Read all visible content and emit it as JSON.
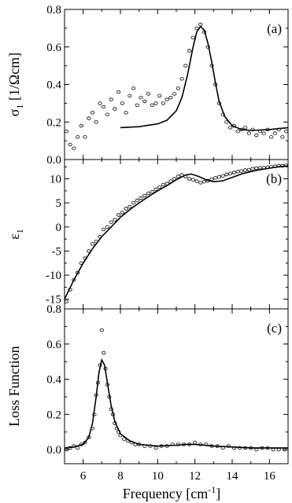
{
  "chart_data": {
    "type": "scatter",
    "xlabel": "Frequency [cm",
    "xlabel_sup": "-1",
    "xlabel_end": "]",
    "xlim": [
      5,
      17
    ],
    "xticks": [
      6,
      8,
      10,
      12,
      14,
      16
    ],
    "xtick_labels": [
      "6",
      "8",
      "10",
      "12",
      "14",
      "16"
    ],
    "panels": [
      {
        "label": "(a)",
        "ylabel_main": "σ",
        "ylabel_sub": "1",
        "ylabel_rest": " [1/Ωcm]",
        "ylim": [
          0,
          0.8
        ],
        "yticks": [
          0.0,
          0.2,
          0.4,
          0.6,
          0.8
        ],
        "ytick_labels": [
          "0.0",
          "0.2",
          "0.4",
          "0.6",
          "0.8"
        ],
        "series": [
          {
            "style": "scatter-open-circle",
            "x": [
              5.1,
              5.3,
              5.5,
              5.7,
              5.9,
              6.1,
              6.3,
              6.5,
              6.7,
              6.9,
              7.1,
              7.3,
              7.5,
              7.7,
              7.9,
              8.1,
              8.3,
              8.5,
              8.7,
              8.9,
              9.1,
              9.3,
              9.5,
              9.7,
              9.9,
              10.1,
              10.3,
              10.5,
              10.7,
              10.9,
              11.1,
              11.3,
              11.5,
              11.7,
              11.9,
              12.1,
              12.3,
              12.5,
              12.7,
              12.9,
              13.1,
              13.3,
              13.5,
              13.7,
              13.9,
              14.1,
              14.3,
              14.5,
              14.7,
              14.9,
              15.1,
              15.3,
              15.5,
              15.7,
              15.9,
              16.1,
              16.3,
              16.5,
              16.7,
              16.9
            ],
            "y": [
              0.15,
              0.08,
              0.06,
              0.12,
              0.18,
              0.12,
              0.22,
              0.25,
              0.2,
              0.3,
              0.28,
              0.24,
              0.32,
              0.27,
              0.36,
              0.3,
              0.25,
              0.34,
              0.38,
              0.29,
              0.33,
              0.31,
              0.35,
              0.29,
              0.3,
              0.34,
              0.3,
              0.32,
              0.33,
              0.35,
              0.38,
              0.43,
              0.5,
              0.58,
              0.65,
              0.7,
              0.72,
              0.68,
              0.6,
              0.5,
              0.4,
              0.3,
              0.24,
              0.2,
              0.17,
              0.18,
              0.15,
              0.16,
              0.17,
              0.14,
              0.16,
              0.13,
              0.15,
              0.14,
              0.16,
              0.12,
              0.14,
              0.16,
              0.12,
              0.15
            ]
          },
          {
            "style": "line",
            "x": [
              8.0,
              9.0,
              10.0,
              10.5,
              11.0,
              11.3,
              11.6,
              11.9,
              12.1,
              12.3,
              12.5,
              12.7,
              12.9,
              13.1,
              13.3,
              13.6,
              14.0,
              14.5,
              15.0,
              16.0,
              17.0
            ],
            "y": [
              0.17,
              0.175,
              0.19,
              0.21,
              0.26,
              0.33,
              0.45,
              0.6,
              0.68,
              0.71,
              0.69,
              0.62,
              0.52,
              0.41,
              0.31,
              0.23,
              0.18,
              0.16,
              0.155,
              0.16,
              0.17
            ]
          }
        ]
      },
      {
        "label": "(b)",
        "ylabel_main": "ε",
        "ylabel_sub": "1",
        "ylabel_rest": "",
        "ylim": [
          -17,
          14
        ],
        "yticks": [
          -15,
          -10,
          -5,
          0,
          5,
          10
        ],
        "ytick_labels": [
          "-15",
          "-10",
          "-5",
          "0",
          "5",
          "10"
        ],
        "series": [
          {
            "style": "scatter-open-circle",
            "x": [
              5.1,
              5.3,
              5.5,
              5.7,
              5.9,
              6.1,
              6.3,
              6.5,
              6.7,
              6.9,
              7.1,
              7.3,
              7.5,
              7.7,
              7.9,
              8.1,
              8.3,
              8.5,
              8.7,
              8.9,
              9.1,
              9.3,
              9.5,
              9.7,
              9.9,
              10.1,
              10.3,
              10.5,
              10.7,
              10.9,
              11.1,
              11.3,
              11.5,
              11.7,
              11.9,
              12.1,
              12.3,
              12.5,
              12.7,
              12.9,
              13.1,
              13.3,
              13.5,
              13.7,
              13.9,
              14.1,
              14.3,
              14.5,
              14.7,
              14.9,
              15.1,
              15.3,
              15.5,
              15.7,
              15.9,
              16.1,
              16.3,
              16.5,
              16.7,
              16.9
            ],
            "y": [
              -15.5,
              -13,
              -11,
              -9.5,
              -7.5,
              -6.5,
              -5,
              -3.5,
              -3,
              -2,
              -0.5,
              0,
              1,
              1.5,
              2.5,
              3,
              3.8,
              4.2,
              5,
              5.5,
              6,
              6.5,
              7,
              7.3,
              7.8,
              8.3,
              8.8,
              9,
              9.5,
              10,
              10.5,
              10.8,
              10.5,
              10,
              9.8,
              9.5,
              9.2,
              9.4,
              9.6,
              9.9,
              10.2,
              10.4,
              10.6,
              10.9,
              11.1,
              11.3,
              11.5,
              11.6,
              11.8,
              11.9,
              12.1,
              12.2,
              12.3,
              12.3,
              12.4,
              12.5,
              12.6,
              12.7,
              12.7,
              12.8
            ]
          },
          {
            "style": "line",
            "x": [
              5,
              5.5,
              6,
              6.5,
              7,
              7.5,
              8,
              8.5,
              9,
              9.5,
              10,
              10.5,
              11,
              11.5,
              11.8,
              12.2,
              12.6,
              13,
              13.5,
              14,
              14.5,
              15,
              15.5,
              16,
              16.5,
              17
            ],
            "y": [
              -15,
              -11,
              -7.5,
              -4.5,
              -2,
              0,
              2,
              3.6,
              5,
              6.3,
              7.5,
              8.6,
              9.8,
              10.8,
              11,
              10.5,
              9.8,
              9.4,
              9.6,
              10.3,
              11,
              11.5,
              11.9,
              12.2,
              12.5,
              12.7
            ]
          }
        ]
      },
      {
        "label": "(c)",
        "ylabel_main": "Loss Function",
        "ylabel_sub": "",
        "ylabel_rest": "",
        "ylim": [
          -0.08,
          0.8
        ],
        "yticks": [
          0.0,
          0.2,
          0.4,
          0.6,
          0.8
        ],
        "ytick_labels": [
          "0.0",
          "0.2",
          "0.4",
          "0.6",
          "0.8"
        ],
        "series": [
          {
            "style": "scatter-open-circle",
            "x": [
              5.1,
              5.3,
              5.5,
              5.7,
              5.9,
              6.1,
              6.3,
              6.5,
              6.6,
              6.7,
              6.8,
              6.9,
              7.0,
              7.1,
              7.2,
              7.3,
              7.4,
              7.5,
              7.6,
              7.7,
              7.8,
              7.9,
              8.0,
              8.2,
              8.4,
              8.6,
              8.8,
              9.0,
              9.3,
              9.6,
              9.9,
              10.2,
              10.5,
              10.8,
              11.1,
              11.4,
              11.7,
              12.0,
              12.3,
              12.6,
              12.9,
              13.2,
              13.5,
              13.8,
              14.1,
              14.4,
              14.7,
              15.0,
              15.3,
              15.6,
              15.9,
              16.2,
              16.5,
              16.8
            ],
            "y": [
              0.0,
              0.01,
              0.02,
              0.01,
              0.03,
              0.04,
              0.07,
              0.12,
              0.2,
              0.31,
              0.38,
              0.48,
              0.68,
              0.55,
              0.46,
              0.37,
              0.3,
              0.23,
              0.2,
              0.15,
              0.12,
              0.1,
              0.08,
              0.06,
              0.05,
              0.04,
              0.03,
              0.03,
              0.02,
              0.02,
              0.01,
              0.02,
              0.02,
              0.03,
              0.03,
              0.03,
              0.03,
              0.04,
              0.03,
              0.03,
              0.02,
              0.02,
              0.01,
              0.02,
              0.01,
              0.01,
              0.01,
              0.01,
              0.0,
              0.01,
              0.01,
              0.0,
              0.0,
              0.0
            ]
          },
          {
            "style": "line",
            "x": [
              5,
              5.5,
              6,
              6.3,
              6.5,
              6.7,
              6.85,
              7.0,
              7.15,
              7.3,
              7.5,
              7.7,
              8.0,
              8.5,
              9,
              10,
              11,
              11.5,
              12,
              13,
              14,
              15,
              16,
              17
            ],
            "y": [
              0.01,
              0.015,
              0.03,
              0.07,
              0.15,
              0.3,
              0.44,
              0.51,
              0.48,
              0.38,
              0.25,
              0.16,
              0.09,
              0.05,
              0.03,
              0.02,
              0.025,
              0.03,
              0.03,
              0.02,
              0.015,
              0.01,
              0.01,
              0.01
            ]
          }
        ]
      }
    ]
  }
}
